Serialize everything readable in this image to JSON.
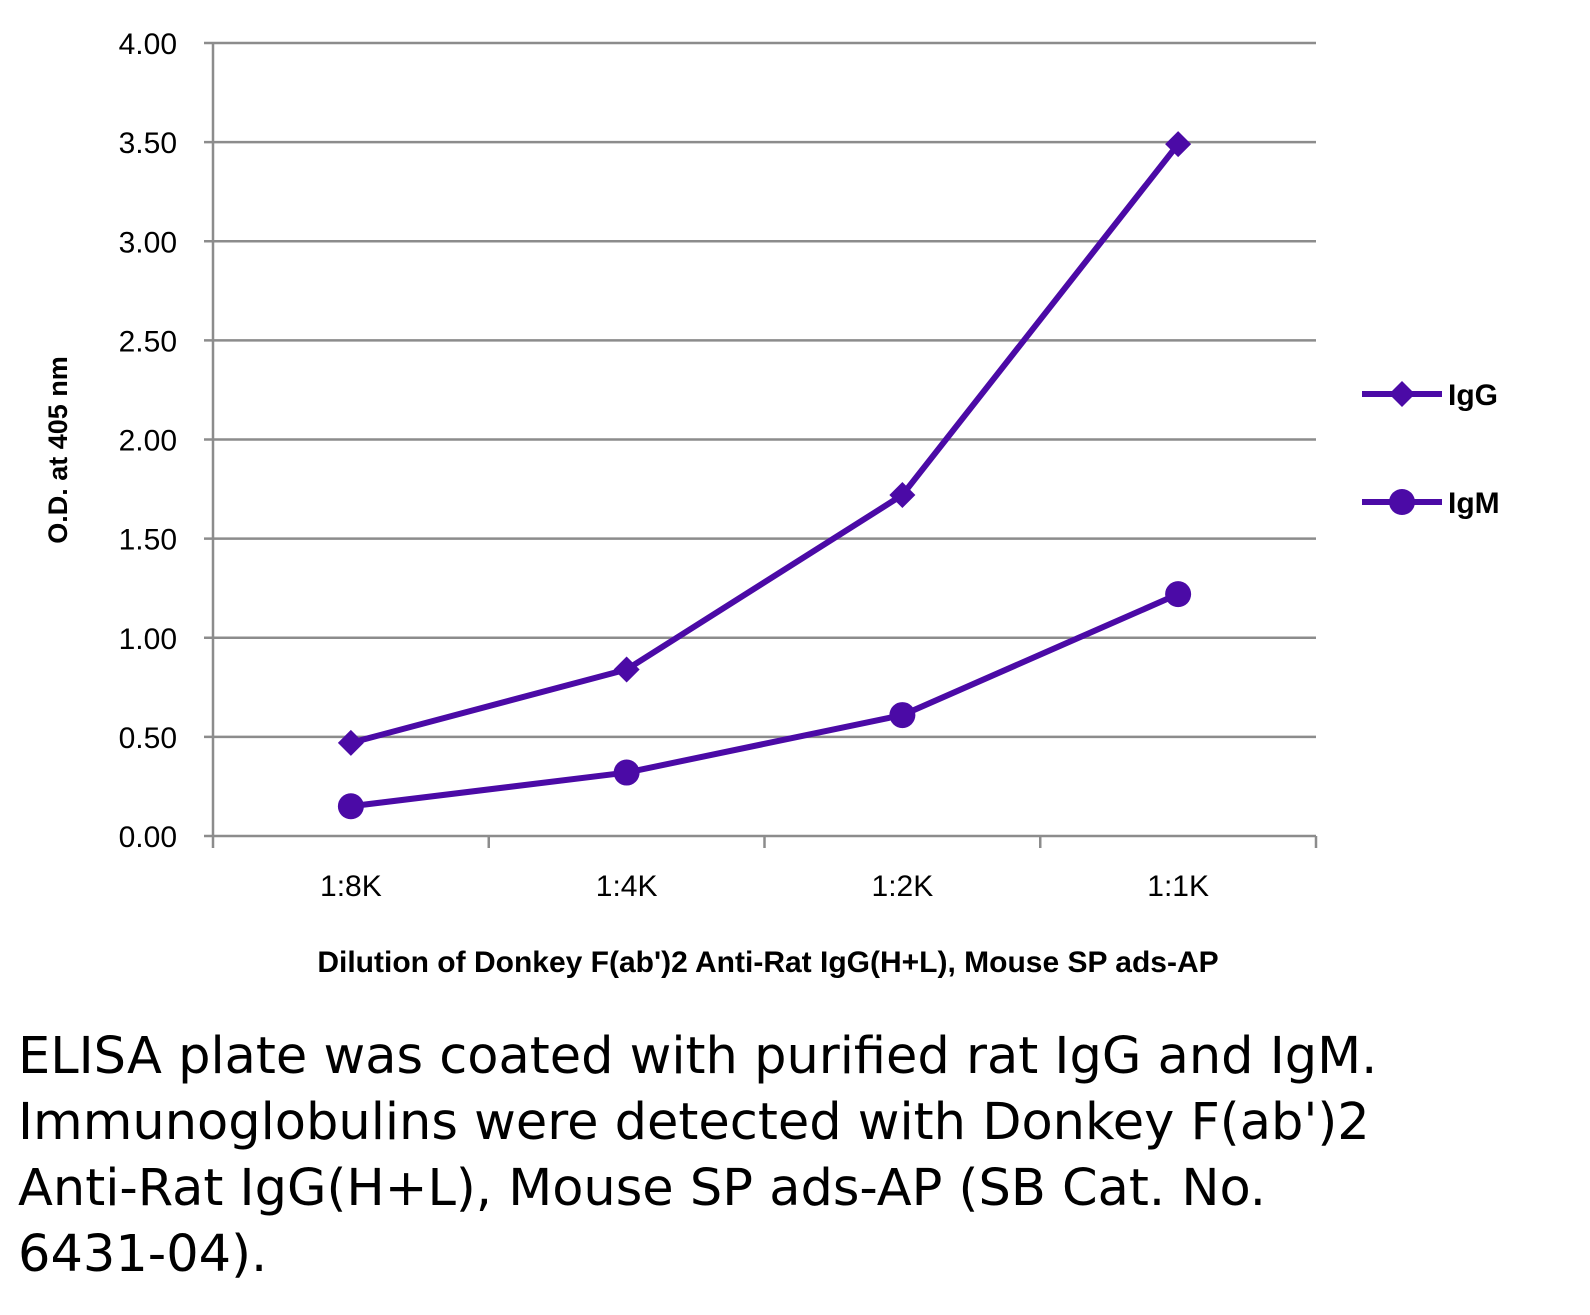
{
  "chart_data": {
    "type": "line",
    "title": "",
    "xlabel": "Dilution of Donkey F(ab')2 Anti-Rat IgG(H+L), Mouse SP ads-AP",
    "ylabel": "O.D. at 405 nm",
    "categories": [
      "1:8K",
      "1:4K",
      "1:2K",
      "1:1K"
    ],
    "ylim": [
      0,
      4
    ],
    "yticks": [
      "0.00",
      "0.50",
      "1.00",
      "1.50",
      "2.00",
      "2.50",
      "3.00",
      "3.50",
      "4.00"
    ],
    "grid": true,
    "legend": "right",
    "series": [
      {
        "name": "IgG",
        "values": [
          0.47,
          0.84,
          1.72,
          3.49
        ],
        "marker": "diamond",
        "color": "#4B0AA6"
      },
      {
        "name": "IgM",
        "values": [
          0.15,
          0.32,
          0.61,
          1.22
        ],
        "marker": "circle",
        "color": "#4B0AA6"
      }
    ]
  },
  "caption": "ELISA plate was coated with purified rat IgG and IgM.  Immunoglobulins were detected with Donkey F(ab')2 Anti-Rat IgG(H+L), Mouse SP ads-AP (SB Cat. No. 6431-04)."
}
